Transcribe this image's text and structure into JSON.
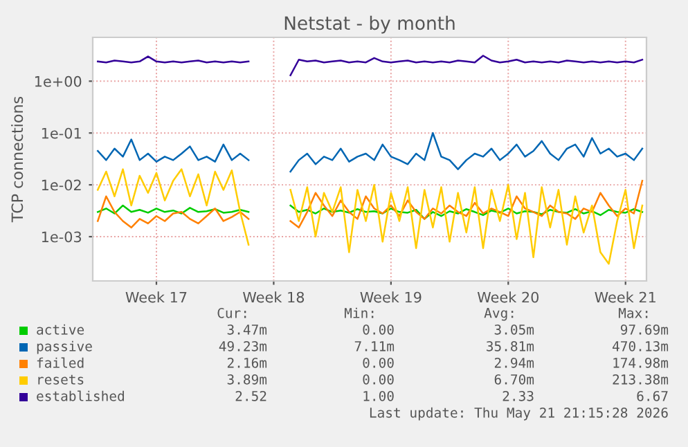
{
  "chart_data": {
    "type": "line",
    "title": "Netstat - by month",
    "ylabel": "TCP connections",
    "categories": [
      null,
      null,
      null,
      null,
      null,
      null,
      null,
      "Week 17",
      null,
      null,
      null,
      null,
      null,
      null,
      null,
      null,
      null,
      null,
      null,
      null,
      null,
      "Week 18",
      null,
      null,
      null,
      null,
      null,
      null,
      null,
      null,
      null,
      null,
      null,
      null,
      null,
      "Week 19",
      null,
      null,
      null,
      null,
      null,
      null,
      null,
      null,
      null,
      null,
      null,
      null,
      null,
      "Week 20",
      null,
      null,
      null,
      null,
      null,
      null,
      null,
      null,
      null,
      null,
      null,
      null,
      null,
      "Week 21",
      null,
      null
    ],
    "series": [
      {
        "name": "active",
        "color": "#00cc00",
        "values": [
          0.003,
          0.0035,
          0.0028,
          0.004,
          0.003,
          0.0033,
          0.0029,
          0.0035,
          0.003,
          0.0032,
          0.0028,
          0.0036,
          0.003,
          0.0031,
          0.0034,
          0.0029,
          0.003,
          0.0033,
          0.003,
          null,
          null,
          null,
          null,
          0.004,
          0.003,
          0.0033,
          0.0028,
          0.0035,
          0.003,
          0.0032,
          0.0029,
          0.0034,
          0.003,
          0.0031,
          0.0028,
          0.0035,
          0.003,
          0.0029,
          0.0033,
          0.0022,
          0.003,
          0.0025,
          0.0031,
          0.0028,
          0.0034,
          0.003,
          0.0026,
          0.0032,
          0.0029,
          0.0035,
          0.0028,
          0.0031,
          0.003,
          0.0027,
          0.0033,
          0.003,
          0.0029,
          0.0034,
          0.0028,
          0.0031,
          0.0026,
          0.0033,
          0.003,
          0.0029,
          0.0034,
          0.003
        ]
      },
      {
        "name": "passive",
        "color": "#0066b3",
        "values": [
          0.045,
          0.03,
          0.05,
          0.035,
          0.075,
          0.03,
          0.04,
          0.028,
          0.035,
          0.03,
          0.04,
          0.055,
          0.03,
          0.035,
          0.028,
          0.06,
          0.03,
          0.04,
          0.03,
          null,
          null,
          null,
          null,
          0.018,
          0.03,
          0.04,
          0.025,
          0.035,
          0.03,
          0.05,
          0.028,
          0.035,
          0.04,
          0.03,
          0.06,
          0.035,
          0.03,
          0.025,
          0.04,
          0.03,
          0.1,
          0.035,
          0.03,
          0.02,
          0.03,
          0.04,
          0.035,
          0.05,
          0.03,
          0.04,
          0.06,
          0.035,
          0.045,
          0.07,
          0.04,
          0.03,
          0.05,
          0.06,
          0.035,
          0.08,
          0.04,
          0.05,
          0.035,
          0.04,
          0.03,
          0.05
        ]
      },
      {
        "name": "failed",
        "color": "#ff8000",
        "values": [
          0.002,
          0.006,
          0.003,
          0.002,
          0.0015,
          0.0022,
          0.0018,
          0.0025,
          0.002,
          0.0028,
          0.003,
          0.0022,
          0.0018,
          0.0025,
          0.0035,
          0.002,
          0.0024,
          0.003,
          0.0022,
          null,
          null,
          null,
          null,
          0.002,
          0.0015,
          0.003,
          0.007,
          0.004,
          0.0025,
          0.005,
          0.003,
          0.0022,
          0.006,
          0.0035,
          0.0028,
          0.004,
          0.0025,
          0.005,
          0.003,
          0.0022,
          0.0035,
          0.0028,
          0.004,
          0.003,
          0.0025,
          0.0045,
          0.0028,
          0.0035,
          0.003,
          0.0025,
          0.006,
          0.0035,
          0.003,
          0.0025,
          0.004,
          0.003,
          0.0028,
          0.0022,
          0.0035,
          0.003,
          0.007,
          0.004,
          0.0025,
          0.0035,
          0.0028,
          0.012
        ]
      },
      {
        "name": "resets",
        "color": "#ffcc00",
        "values": [
          0.008,
          0.018,
          0.006,
          0.02,
          0.004,
          0.015,
          0.007,
          0.017,
          0.005,
          0.012,
          0.02,
          0.006,
          0.016,
          0.004,
          0.018,
          0.008,
          0.019,
          0.003,
          0.0007,
          null,
          null,
          null,
          null,
          0.008,
          0.002,
          0.009,
          0.001,
          0.007,
          0.003,
          0.009,
          0.0005,
          0.008,
          0.002,
          0.01,
          0.0008,
          0.007,
          0.002,
          0.009,
          0.0006,
          0.008,
          0.0015,
          0.009,
          0.0008,
          0.007,
          0.0012,
          0.009,
          0.0006,
          0.008,
          0.002,
          0.01,
          0.0009,
          0.007,
          0.0004,
          0.009,
          0.0015,
          0.008,
          0.0007,
          0.006,
          0.0012,
          0.004,
          0.0005,
          0.0003,
          0.002,
          0.008,
          0.0006,
          0.004
        ]
      },
      {
        "name": "established",
        "color": "#330099",
        "values": [
          2.4,
          2.3,
          2.5,
          2.4,
          2.3,
          2.4,
          3.0,
          2.4,
          2.3,
          2.4,
          2.3,
          2.4,
          2.5,
          2.3,
          2.4,
          2.3,
          2.4,
          2.3,
          2.4,
          null,
          null,
          null,
          null,
          1.3,
          2.6,
          2.4,
          2.5,
          2.3,
          2.4,
          2.5,
          2.3,
          2.4,
          2.3,
          2.8,
          2.4,
          2.3,
          2.4,
          2.5,
          2.3,
          2.4,
          2.3,
          2.4,
          2.3,
          2.5,
          2.4,
          2.3,
          3.1,
          2.5,
          2.3,
          2.4,
          2.6,
          2.3,
          2.4,
          2.3,
          2.4,
          2.3,
          2.5,
          2.4,
          2.3,
          2.4,
          2.3,
          2.4,
          2.3,
          2.4,
          2.3,
          2.6
        ]
      }
    ],
    "log": "y",
    "ylim": [
      0.00014,
      7
    ],
    "yticks": [
      {
        "value": 0.001,
        "label": "1e-03"
      },
      {
        "value": 0.01,
        "label": "1e-02"
      },
      {
        "value": 0.1,
        "label": "1e-01"
      },
      {
        "value": 1,
        "label": "1e+00"
      }
    ],
    "grid": true,
    "legend": "bottom left",
    "marker": "none",
    "line_style": "solid",
    "annotations": [
      "Cur:",
      "Min:",
      "Avg:",
      "Max:",
      "3.47m",
      "0.00",
      "3.05m",
      "97.69m",
      "49.23m",
      "7.11m",
      "35.81m",
      "470.13m",
      "2.16m",
      "0.00",
      "2.94m",
      "174.98m",
      "3.89m",
      "0.00",
      "6.70m",
      "213.38m",
      "2.52",
      "1.00",
      "2.33",
      "6.67",
      "Last update: Thu May 21 21:15:28 2026"
    ]
  }
}
